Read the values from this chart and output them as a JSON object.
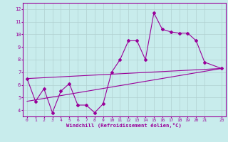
{
  "title": "",
  "xlabel": "Windchill (Refroidissement éolien,°C)",
  "ylabel": "",
  "background_color": "#c8ecec",
  "line_color": "#990099",
  "grid_color": "#b0d0d0",
  "xlim": [
    -0.5,
    23.5
  ],
  "ylim": [
    3.5,
    12.5
  ],
  "xticks": [
    0,
    1,
    2,
    3,
    4,
    5,
    6,
    7,
    8,
    9,
    10,
    11,
    12,
    13,
    14,
    15,
    16,
    17,
    18,
    19,
    20,
    21,
    23
  ],
  "yticks": [
    4,
    5,
    6,
    7,
    8,
    9,
    10,
    11,
    12
  ],
  "series1_x": [
    0,
    1,
    2,
    3,
    4,
    5,
    6,
    7,
    8,
    9,
    10,
    11,
    12,
    13,
    14,
    15,
    16,
    17,
    18,
    19,
    20,
    21,
    23
  ],
  "series1_y": [
    6.5,
    4.7,
    5.7,
    3.8,
    5.5,
    6.1,
    4.4,
    4.4,
    3.8,
    4.5,
    7.0,
    8.0,
    9.5,
    9.5,
    8.0,
    11.7,
    10.4,
    10.2,
    10.1,
    10.1,
    9.5,
    7.8,
    7.3
  ],
  "series2_x": [
    0,
    23
  ],
  "series2_y": [
    6.5,
    7.3
  ],
  "series3_x": [
    0,
    23
  ],
  "series3_y": [
    4.7,
    7.3
  ],
  "marker": "D",
  "marker_size": 2.0,
  "linewidth": 0.8,
  "xlabel_fontsize": 5.2,
  "tick_fontsize": 4.5
}
